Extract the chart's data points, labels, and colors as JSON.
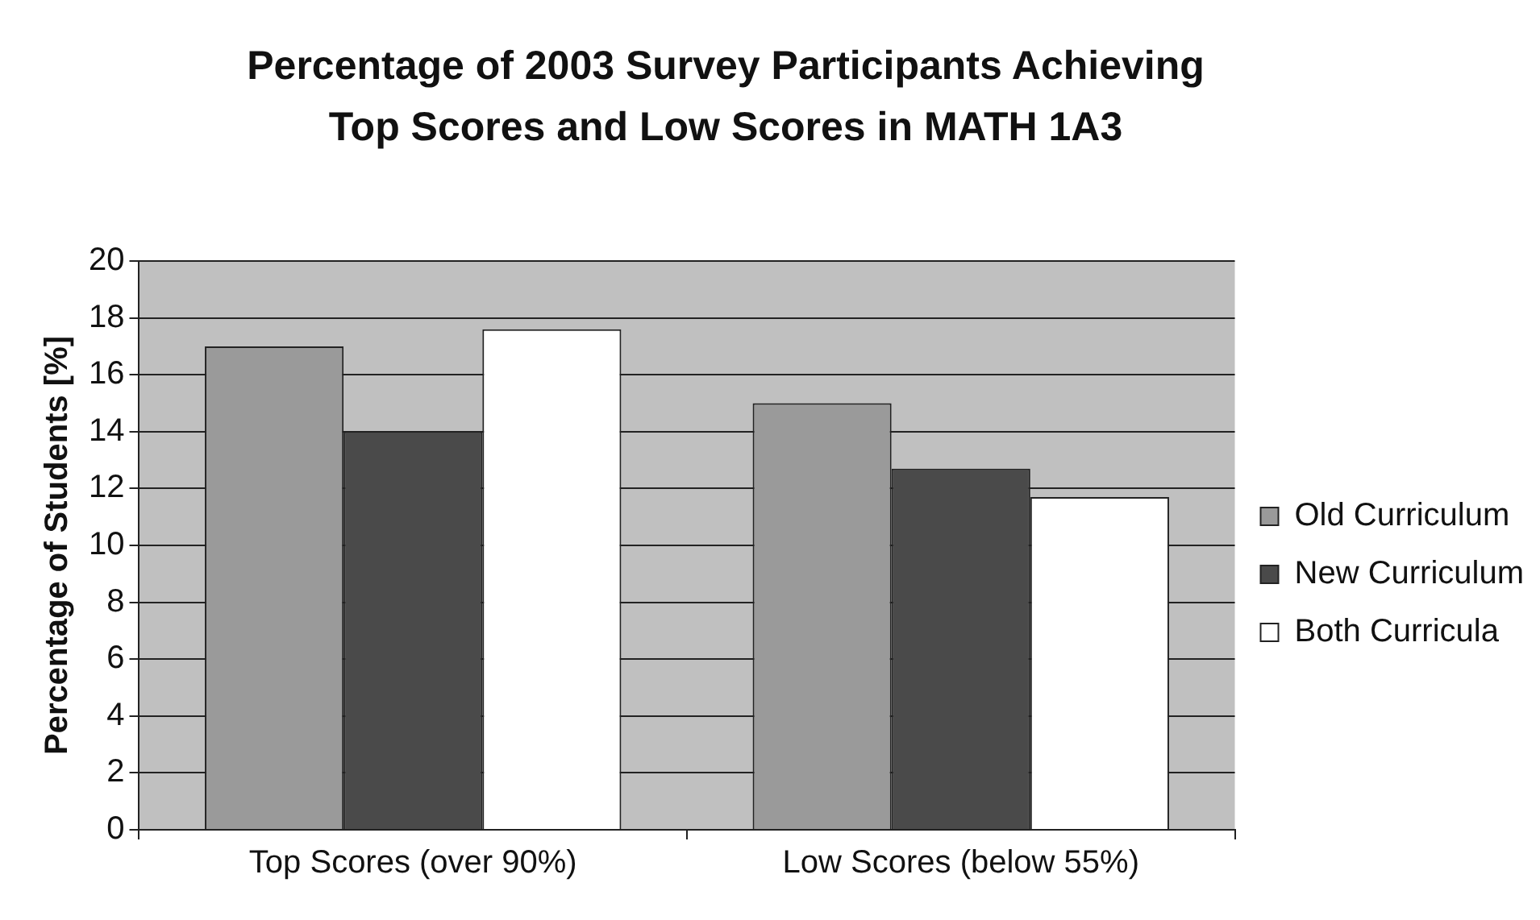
{
  "chart_data": {
    "type": "bar",
    "title": "Percentage of 2003 Survey Participants Achieving Top Scores and Low Scores in MATH 1A3",
    "ylabel": "Percentage of Students [%]",
    "categories": [
      "Top Scores (over 90%)",
      "Low Scores (below 55%)"
    ],
    "series": [
      {
        "name": "Old Curriculum",
        "color": "#9a9a9a",
        "values": [
          17.0,
          15.0
        ]
      },
      {
        "name": "New Curriculum",
        "color": "#4a4a4a",
        "values": [
          14.0,
          12.7
        ]
      },
      {
        "name": "Both Curricula",
        "color": "#ffffff",
        "values": [
          17.6,
          11.7
        ]
      }
    ],
    "ylim": [
      0,
      20
    ],
    "yticks": [
      0,
      2,
      4,
      6,
      8,
      10,
      12,
      14,
      16,
      18,
      20
    ],
    "grid": "y",
    "legend": "right"
  }
}
